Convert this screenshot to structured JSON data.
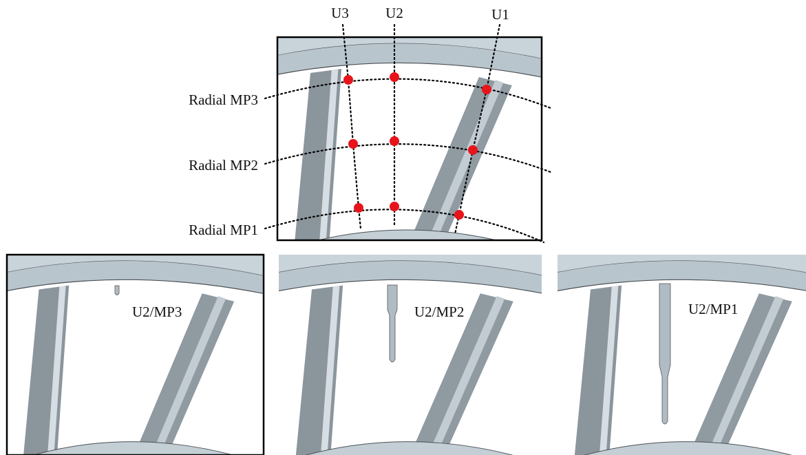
{
  "top_panel": {
    "columns": [
      "U3",
      "U2",
      "U1"
    ],
    "rows": [
      "Radial MP3",
      "Radial MP2",
      "Radial MP1"
    ]
  },
  "bottom_panels": [
    {
      "label": "U2/MP3"
    },
    {
      "label": "U2/MP2"
    },
    {
      "label": "U2/MP1"
    }
  ]
}
